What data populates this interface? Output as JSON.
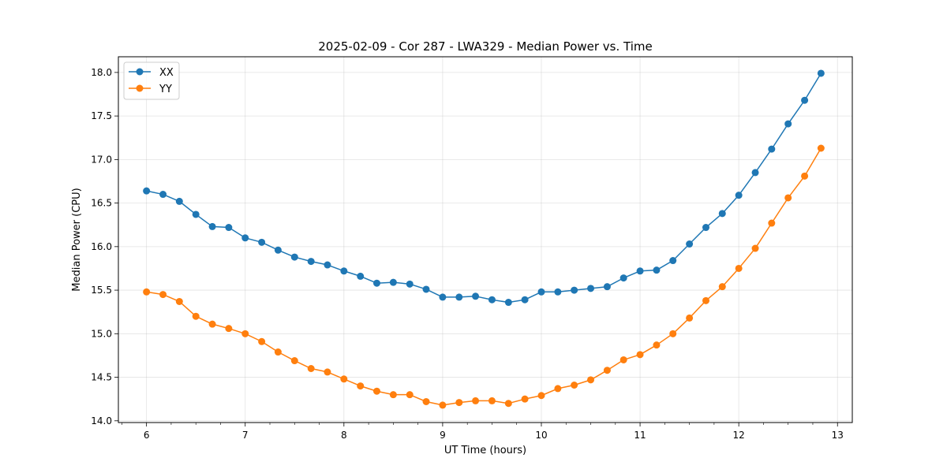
{
  "chart_data": {
    "type": "line",
    "title": "2025-02-09 - Cor 287 - LWA329 - Median Power vs. Time",
    "xlabel": "UT Time (hours)",
    "ylabel": "Median Power (CPU)",
    "xlim": [
      5.715,
      13.15
    ],
    "ylim": [
      13.98,
      18.18
    ],
    "xticks": [
      6,
      7,
      8,
      9,
      10,
      11,
      12,
      13
    ],
    "yticks": [
      14.0,
      14.5,
      15.0,
      15.5,
      16.0,
      16.5,
      17.0,
      17.5,
      18.0
    ],
    "xtick_labels": [
      "6",
      "7",
      "8",
      "9",
      "10",
      "11",
      "12",
      "13"
    ],
    "ytick_labels": [
      "14.0",
      "14.5",
      "15.0",
      "15.5",
      "16.0",
      "16.5",
      "17.0",
      "17.5",
      "18.0"
    ],
    "grid": true,
    "legend_position": "top-left",
    "x": [
      6.0,
      6.167,
      6.333,
      6.5,
      6.667,
      6.833,
      7.0,
      7.167,
      7.333,
      7.5,
      7.667,
      7.833,
      8.0,
      8.167,
      8.333,
      8.5,
      8.667,
      8.833,
      9.0,
      9.167,
      9.333,
      9.5,
      9.667,
      9.833,
      10.0,
      10.167,
      10.333,
      10.5,
      10.667,
      10.833,
      11.0,
      11.167,
      11.333,
      11.5,
      11.667,
      11.833,
      12.0,
      12.167,
      12.333,
      12.5,
      12.667,
      12.833
    ],
    "series": [
      {
        "name": "XX",
        "color": "#1f77b4",
        "values": [
          16.64,
          16.6,
          16.52,
          16.37,
          16.23,
          16.22,
          16.1,
          16.05,
          15.96,
          15.88,
          15.83,
          15.79,
          15.72,
          15.66,
          15.58,
          15.59,
          15.57,
          15.51,
          15.42,
          15.42,
          15.43,
          15.39,
          15.36,
          15.39,
          15.48,
          15.48,
          15.5,
          15.52,
          15.54,
          15.64,
          15.72,
          15.73,
          15.84,
          16.03,
          16.22,
          16.38,
          16.59,
          16.85,
          17.12,
          17.41,
          17.68,
          17.99
        ]
      },
      {
        "name": "YY",
        "color": "#ff7f0e",
        "values": [
          15.48,
          15.45,
          15.37,
          15.2,
          15.11,
          15.06,
          15.0,
          14.91,
          14.79,
          14.69,
          14.6,
          14.56,
          14.48,
          14.4,
          14.34,
          14.3,
          14.3,
          14.22,
          14.18,
          14.21,
          14.23,
          14.23,
          14.2,
          14.25,
          14.29,
          14.37,
          14.41,
          14.47,
          14.58,
          14.7,
          14.76,
          14.87,
          15.0,
          15.18,
          15.38,
          15.54,
          15.75,
          15.98,
          16.27,
          16.56,
          16.81,
          17.13
        ]
      }
    ]
  }
}
